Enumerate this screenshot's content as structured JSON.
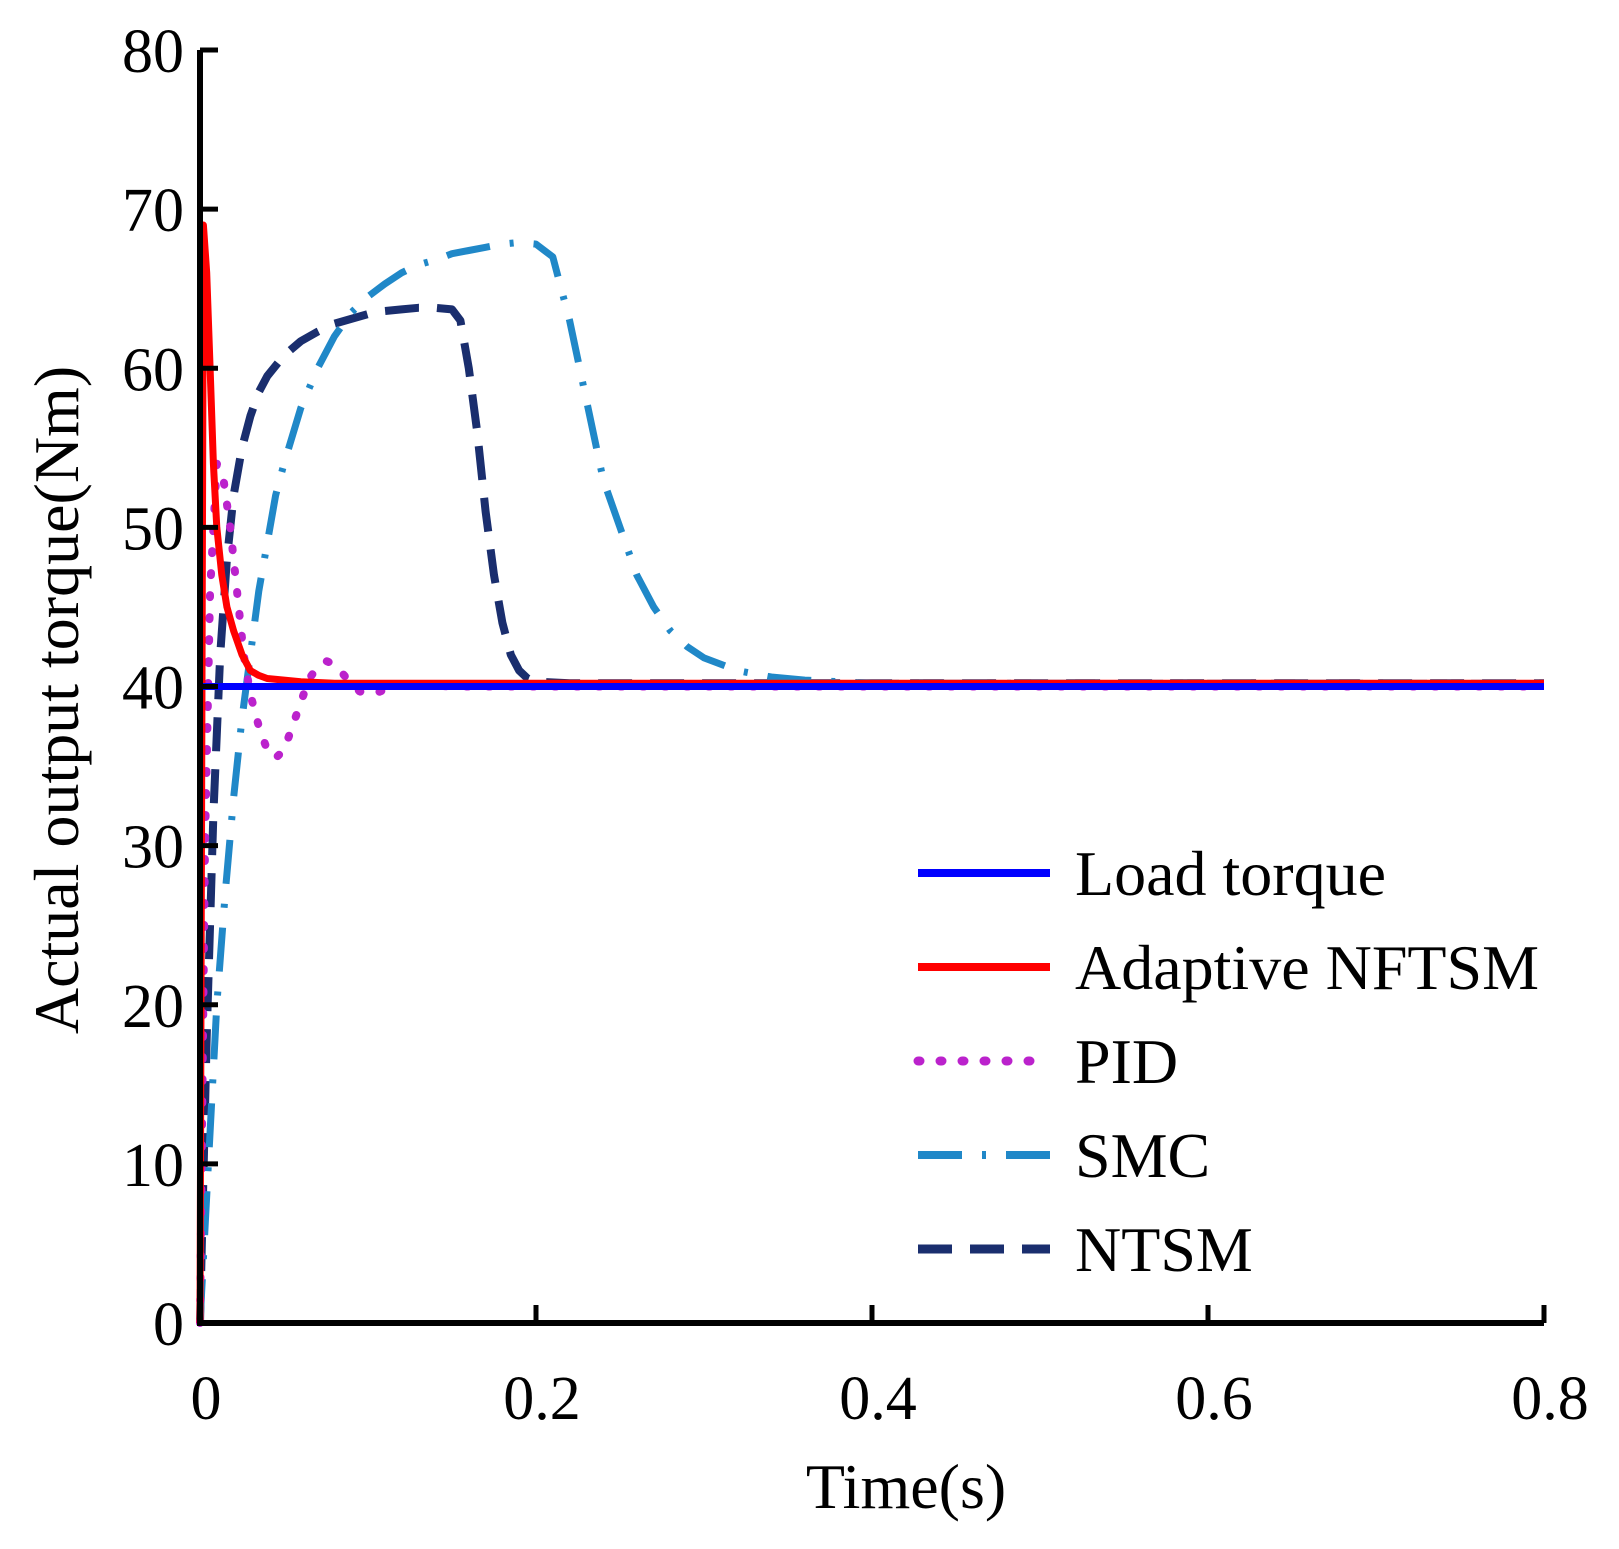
{
  "chart_data": {
    "type": "line",
    "title": "",
    "xlabel": "Time(s)",
    "ylabel": "Actual output torque(Nm)",
    "xlim": [
      0,
      0.8
    ],
    "ylim": [
      0,
      80
    ],
    "xticks": [
      0,
      0.2,
      0.4,
      0.6,
      0.8
    ],
    "xtick_labels": [
      "0",
      "0.2",
      "0.4",
      "0.6",
      "0.8"
    ],
    "yticks": [
      0,
      10,
      20,
      30,
      40,
      50,
      60,
      70,
      80
    ],
    "ytick_labels": [
      "0",
      "10",
      "20",
      "30",
      "40",
      "50",
      "60",
      "70",
      "80"
    ],
    "grid": false,
    "legend_position": "bottom-right",
    "series": [
      {
        "name": "Load torque",
        "color": "#0000ff",
        "style": "solid",
        "x": [
          0,
          0.8
        ],
        "y": [
          40,
          40
        ]
      },
      {
        "name": "Adaptive NFTSM",
        "color": "#ff0000",
        "style": "solid",
        "x": [
          0,
          0.002,
          0.004,
          0.006,
          0.008,
          0.01,
          0.013,
          0.016,
          0.02,
          0.025,
          0.03,
          0.035,
          0.04,
          0.05,
          0.06,
          0.08,
          0.1,
          0.3,
          0.8
        ],
        "y": [
          0,
          69,
          66,
          60,
          54,
          50,
          47,
          45,
          43.5,
          42,
          41,
          40.7,
          40.5,
          40.4,
          40.3,
          40.2,
          40.2,
          40.2,
          40.2
        ]
      },
      {
        "name": "PID",
        "color": "#bb22cc",
        "style": "dotted",
        "x": [
          0,
          0.003,
          0.006,
          0.01,
          0.014,
          0.018,
          0.022,
          0.026,
          0.03,
          0.035,
          0.04,
          0.045,
          0.05,
          0.055,
          0.06,
          0.065,
          0.07,
          0.075,
          0.08,
          0.085,
          0.09,
          0.095,
          0.1,
          0.105,
          0.11,
          0.115,
          0.12,
          0.13,
          0.15,
          0.2,
          0.8
        ],
        "y": [
          0,
          30,
          46,
          54,
          53,
          50,
          46,
          42,
          39.5,
          37.5,
          36,
          35.5,
          36,
          37.5,
          39,
          40.5,
          41.2,
          41.6,
          41.4,
          40.8,
          40.2,
          39.7,
          39.5,
          39.6,
          39.8,
          40,
          40.1,
          40.1,
          40,
          40,
          40
        ]
      },
      {
        "name": "SMC",
        "color": "#2088c8",
        "style": "dashdot",
        "x": [
          0,
          0.005,
          0.01,
          0.015,
          0.02,
          0.025,
          0.03,
          0.035,
          0.04,
          0.045,
          0.05,
          0.06,
          0.07,
          0.08,
          0.09,
          0.1,
          0.11,
          0.12,
          0.13,
          0.14,
          0.15,
          0.16,
          0.17,
          0.18,
          0.19,
          0.2,
          0.21,
          0.22,
          0.23,
          0.24,
          0.25,
          0.26,
          0.27,
          0.28,
          0.29,
          0.3,
          0.32,
          0.34,
          0.36,
          0.38,
          0.4,
          0.42,
          0.8
        ],
        "y": [
          0,
          10,
          20,
          27,
          33,
          38,
          42,
          46,
          49,
          52,
          54,
          57.5,
          60,
          62,
          63.5,
          64.5,
          65.3,
          66,
          66.5,
          66.8,
          67.2,
          67.4,
          67.6,
          67.8,
          67.9,
          67.8,
          67,
          63,
          58,
          53,
          50,
          47,
          45,
          43.5,
          42.5,
          41.8,
          41,
          40.6,
          40.4,
          40.3,
          40.2,
          40.2,
          40.2
        ]
      },
      {
        "name": "NTSM",
        "color": "#1a2e6e",
        "style": "dashed",
        "x": [
          0,
          0.004,
          0.008,
          0.012,
          0.016,
          0.02,
          0.025,
          0.03,
          0.035,
          0.04,
          0.05,
          0.06,
          0.07,
          0.08,
          0.09,
          0.1,
          0.11,
          0.12,
          0.13,
          0.14,
          0.15,
          0.155,
          0.16,
          0.165,
          0.17,
          0.175,
          0.18,
          0.185,
          0.19,
          0.195,
          0.2,
          0.22,
          0.8
        ],
        "y": [
          0,
          18,
          32,
          42,
          48,
          52,
          55,
          57,
          58.5,
          59.5,
          60.8,
          61.7,
          62.3,
          62.8,
          63.1,
          63.4,
          63.6,
          63.7,
          63.8,
          63.8,
          63.7,
          63,
          60,
          56,
          51,
          47,
          44,
          42,
          41,
          40.5,
          40.3,
          40.2,
          40.2
        ]
      }
    ]
  }
}
